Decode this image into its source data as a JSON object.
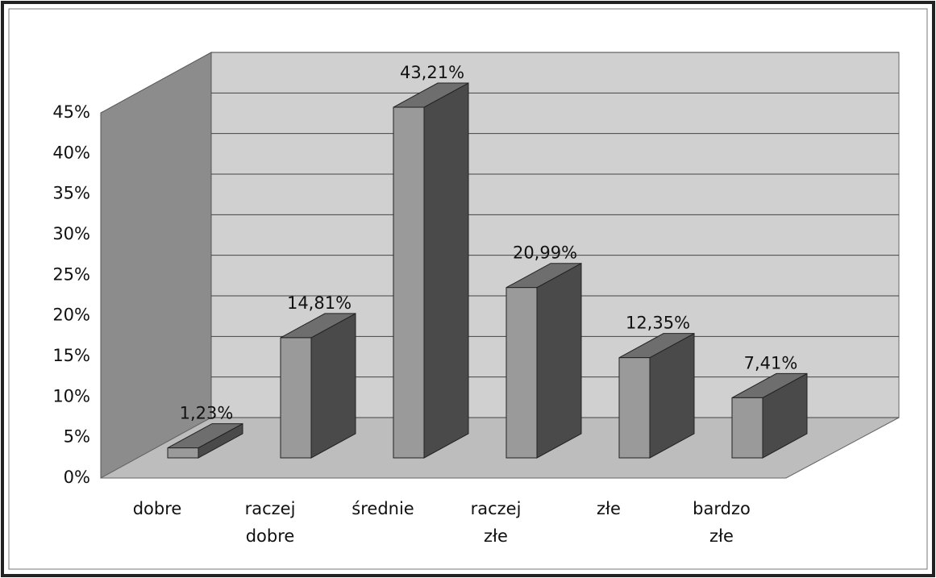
{
  "chart_data": {
    "type": "bar3d",
    "categories": [
      "dobre",
      "raczej dobre",
      "średnie",
      "raczej złe",
      "złe",
      "bardzo złe"
    ],
    "values": [
      1.23,
      14.81,
      43.21,
      20.99,
      12.35,
      7.41
    ],
    "value_labels": [
      "1,23%",
      "14,81%",
      "43,21%",
      "20,99%",
      "12,35%",
      "7,41%"
    ],
    "color": "#9a9a9a",
    "ylim": [
      0,
      45
    ],
    "yticks": [
      {
        "value": 0,
        "label": "0%"
      },
      {
        "value": 5,
        "label": "5%"
      },
      {
        "value": 10,
        "label": "10%"
      },
      {
        "value": 15,
        "label": "15%"
      },
      {
        "value": 20,
        "label": "20%"
      },
      {
        "value": 25,
        "label": "25%"
      },
      {
        "value": 30,
        "label": "30%"
      },
      {
        "value": 35,
        "label": "35%"
      },
      {
        "value": 40,
        "label": "40%"
      },
      {
        "value": 45,
        "label": "45%"
      }
    ],
    "grid": true
  }
}
